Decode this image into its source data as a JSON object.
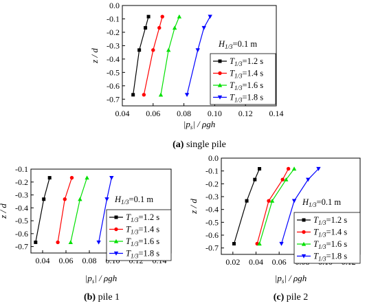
{
  "colors": {
    "1.2 s": "#000000",
    "1.4 s": "#ff0000",
    "1.6 s": "#00e000",
    "1.8 s": "#0000ff"
  },
  "chart_data": [
    {
      "type": "line",
      "caption_tag": "(a)",
      "caption_text": " single pile",
      "xlabel": "|p_s| / ρgh",
      "ylabel": "z / d",
      "xlim": [
        0.04,
        0.14
      ],
      "ylim": [
        -0.75,
        0.0
      ],
      "xticks": [
        "0.04",
        "0.06",
        "0.08",
        "0.10",
        "0.12",
        "0.14"
      ],
      "yticks": [
        "0.0",
        "-0.1",
        "-0.2",
        "-0.3",
        "-0.4",
        "-0.5",
        "-0.6",
        "-0.7"
      ],
      "legend_title": "H1/3=0.1 m",
      "legend_position": "right",
      "series": [
        {
          "name": "T1/3=1.2 s",
          "marker": "square",
          "x": [
            0.057,
            0.055,
            0.051,
            0.047
          ],
          "y": [
            -0.083,
            -0.167,
            -0.333,
            -0.667
          ]
        },
        {
          "name": "T1/3=1.4 s",
          "marker": "circle",
          "x": [
            0.066,
            0.064,
            0.06,
            0.054
          ],
          "y": [
            -0.083,
            -0.167,
            -0.333,
            -0.667
          ]
        },
        {
          "name": "T1/3=1.6 s",
          "marker": "triangle-up",
          "x": [
            0.077,
            0.074,
            0.07,
            0.065
          ],
          "y": [
            -0.083,
            -0.167,
            -0.333,
            -0.667
          ]
        },
        {
          "name": "T1/3=1.8 s",
          "marker": "triangle-down",
          "x": [
            0.097,
            0.093,
            0.089,
            0.082
          ],
          "y": [
            -0.083,
            -0.167,
            -0.333,
            -0.667
          ]
        }
      ]
    },
    {
      "type": "line",
      "caption_tag": "(b)",
      "caption_text": " pile 1",
      "xlabel": "|p_s| / ρgh",
      "ylabel": "z / d",
      "xlim": [
        0.03,
        0.15
      ],
      "ylim": [
        -0.75,
        -0.1
      ],
      "xticks": [
        "0.04",
        "0.06",
        "0.08",
        "0.10",
        "0.12",
        "0.14"
      ],
      "yticks": [
        "-0.1",
        "-0.2",
        "-0.3",
        "-0.4",
        "-0.5",
        "-0.6",
        "-0.7"
      ],
      "legend_title": "H1/3=0.1 m",
      "legend_position": "right",
      "series": [
        {
          "name": "T1/3=1.2 s",
          "marker": "square",
          "x": [
            0.046,
            0.041,
            0.034
          ],
          "y": [
            -0.167,
            -0.333,
            -0.667
          ]
        },
        {
          "name": "T1/3=1.4 s",
          "marker": "circle",
          "x": [
            0.065,
            0.059,
            0.053
          ],
          "y": [
            -0.167,
            -0.333,
            -0.667
          ]
        },
        {
          "name": "T1/3=1.6 s",
          "marker": "triangle-up",
          "x": [
            0.078,
            0.072,
            0.064
          ],
          "y": [
            -0.167,
            -0.333,
            -0.667
          ]
        },
        {
          "name": "T1/3=1.8 s",
          "marker": "triangle-down",
          "x": [
            0.099,
            0.095,
            0.088
          ],
          "y": [
            -0.167,
            -0.333,
            -0.667
          ]
        }
      ]
    },
    {
      "type": "line",
      "caption_tag": "(c)",
      "caption_text": " pile 2",
      "xlabel": "|p_s| / ρgh",
      "ylabel": "z / d",
      "xlim": [
        0.01,
        0.13
      ],
      "ylim": [
        -0.75,
        0.0
      ],
      "xticks": [
        "0.02",
        "0.04",
        "0.06",
        "0.08",
        "0.10",
        "0.12"
      ],
      "yticks": [
        "0.0",
        "-0.1",
        "-0.2",
        "-0.3",
        "-0.4",
        "-0.5",
        "-0.6",
        "-0.7"
      ],
      "legend_title": "H1/3=0.1 m",
      "legend_position": "right",
      "series": [
        {
          "name": "T1/3=1.2 s",
          "marker": "square",
          "x": [
            0.043,
            0.039,
            0.032,
            0.021
          ],
          "y": [
            -0.083,
            -0.167,
            -0.333,
            -0.667
          ]
        },
        {
          "name": "T1/3=1.4 s",
          "marker": "circle",
          "x": [
            0.068,
            0.063,
            0.051,
            0.041
          ],
          "y": [
            -0.083,
            -0.167,
            -0.333,
            -0.667
          ]
        },
        {
          "name": "T1/3=1.6 s",
          "marker": "triangle-up",
          "x": [
            0.073,
            0.066,
            0.054,
            0.043
          ],
          "y": [
            -0.083,
            -0.167,
            -0.333,
            -0.667
          ]
        },
        {
          "name": "T1/3=1.8 s",
          "marker": "triangle-down",
          "x": [
            0.094,
            0.085,
            0.073,
            0.062
          ],
          "y": [
            -0.083,
            -0.167,
            -0.333,
            -0.667
          ]
        }
      ]
    }
  ]
}
